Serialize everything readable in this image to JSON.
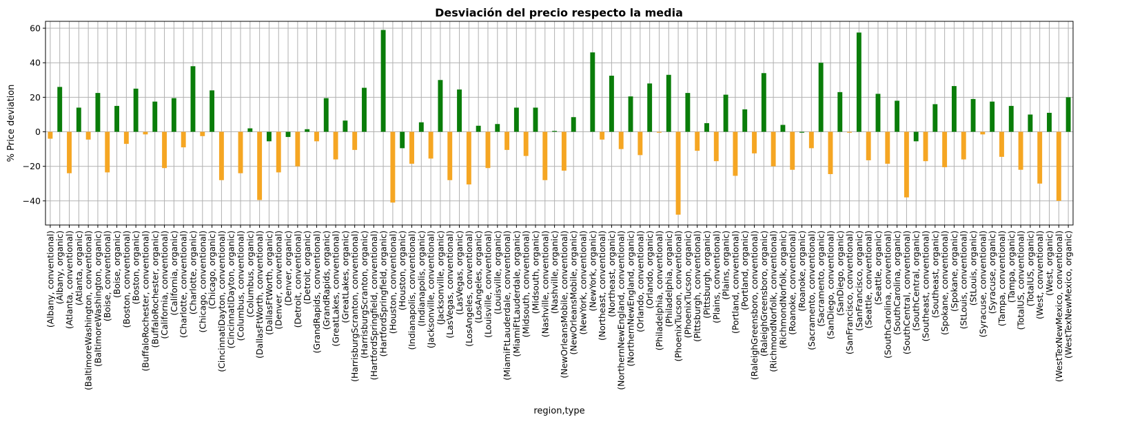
{
  "chart_data": {
    "type": "bar",
    "title": "Desviación del precio respecto la media",
    "xlabel": "region,type",
    "ylabel": "% Price deviation",
    "ylim": [
      -54,
      64
    ],
    "yticks": [
      -40,
      -20,
      0,
      20,
      40,
      60
    ],
    "grid": true,
    "legend": "none",
    "colors": {
      "conventional": "#f5a623",
      "organic": "#0a7d0a",
      "grid": "#b0b0b0",
      "axis": "#000000"
    },
    "categories": [
      "(Albany, conventional)",
      "(Albany, organic)",
      "(Atlanta, conventional)",
      "(Atlanta, organic)",
      "(BaltimoreWashington, conventional)",
      "(BaltimoreWashington, organic)",
      "(Boise, conventional)",
      "(Boise, organic)",
      "(Boston, conventional)",
      "(Boston, organic)",
      "(BuffaloRochester, conventional)",
      "(BuffaloRochester, organic)",
      "(California, conventional)",
      "(California, organic)",
      "(Charlotte, conventional)",
      "(Charlotte, organic)",
      "(Chicago, conventional)",
      "(Chicago, organic)",
      "(CincinnatiDayton, conventional)",
      "(CincinnatiDayton, organic)",
      "(Columbus, conventional)",
      "(Columbus, organic)",
      "(DallasFtWorth, conventional)",
      "(DallasFtWorth, organic)",
      "(Denver, conventional)",
      "(Denver, organic)",
      "(Detroit, conventional)",
      "(Detroit, organic)",
      "(GrandRapids, conventional)",
      "(GrandRapids, organic)",
      "(GreatLakes, conventional)",
      "(GreatLakes, organic)",
      "(HarrisburgScranton, conventional)",
      "(HarrisburgScranton, organic)",
      "(HartfordSpringfield, conventional)",
      "(HartfordSpringfield, organic)",
      "(Houston, conventional)",
      "(Houston, organic)",
      "(Indianapolis, conventional)",
      "(Indianapolis, organic)",
      "(Jacksonville, conventional)",
      "(Jacksonville, organic)",
      "(LasVegas, conventional)",
      "(LasVegas, organic)",
      "(LosAngeles, conventional)",
      "(LosAngeles, organic)",
      "(Louisville, conventional)",
      "(Louisville, organic)",
      "(MiamiFtLauderdale, conventional)",
      "(MiamiFtLauderdale, organic)",
      "(Midsouth, conventional)",
      "(Midsouth, organic)",
      "(Nashville, conventional)",
      "(Nashville, organic)",
      "(NewOrleansMobile, conventional)",
      "(NewOrleansMobile, organic)",
      "(NewYork, conventional)",
      "(NewYork, organic)",
      "(Northeast, conventional)",
      "(Northeast, organic)",
      "(NorthernNewEngland, conventional)",
      "(NorthernNewEngland, organic)",
      "(Orlando, conventional)",
      "(Orlando, organic)",
      "(Philadelphia, conventional)",
      "(Philadelphia, organic)",
      "(PhoenixTucson, conventional)",
      "(PhoenixTucson, organic)",
      "(Pittsburgh, conventional)",
      "(Pittsburgh, organic)",
      "(Plains, conventional)",
      "(Plains, organic)",
      "(Portland, conventional)",
      "(Portland, organic)",
      "(RaleighGreensboro, conventional)",
      "(RaleighGreensboro, organic)",
      "(RichmondNorfolk, conventional)",
      "(RichmondNorfolk, organic)",
      "(Roanoke, conventional)",
      "(Roanoke, organic)",
      "(Sacramento, conventional)",
      "(Sacramento, organic)",
      "(SanDiego, conventional)",
      "(SanDiego, organic)",
      "(SanFrancisco, conventional)",
      "(SanFrancisco, organic)",
      "(Seattle, conventional)",
      "(Seattle, organic)",
      "(SouthCarolina, conventional)",
      "(SouthCarolina, organic)",
      "(SouthCentral, conventional)",
      "(SouthCentral, organic)",
      "(Southeast, conventional)",
      "(Southeast, organic)",
      "(Spokane, conventional)",
      "(Spokane, organic)",
      "(StLouis, conventional)",
      "(StLouis, organic)",
      "(Syracuse, conventional)",
      "(Syracuse, organic)",
      "(Tampa, conventional)",
      "(Tampa, organic)",
      "(TotalUS, conventional)",
      "(TotalUS, organic)",
      "(West, conventional)",
      "(West, organic)",
      "(WestTexNewMexico, conventional)",
      "(WestTexNewMexico, organic)"
    ],
    "values": [
      -4,
      26,
      -24,
      14,
      -4.5,
      22.5,
      -23.5,
      15,
      -7,
      25,
      -1.5,
      17.5,
      -21,
      19.5,
      -9,
      38,
      -2.5,
      24,
      -28,
      0,
      -24,
      2,
      -39.5,
      -5.5,
      -23.5,
      -3,
      -20,
      1.5,
      -5.5,
      19.5,
      -16,
      6.5,
      -10.5,
      25.5,
      0,
      59,
      -41,
      -9.5,
      -18.5,
      5.5,
      -15.5,
      30,
      -28,
      24.5,
      -30.5,
      3.5,
      -21,
      4.5,
      -10.5,
      14,
      -14,
      14,
      -28,
      0.5,
      -22.5,
      8.5,
      0,
      46,
      -4.5,
      32.5,
      -10,
      20.5,
      -13.5,
      28,
      -0.5,
      33,
      -48,
      22.5,
      -11,
      5,
      -17,
      21.5,
      -25.5,
      13,
      -12.5,
      34,
      -20,
      4,
      -22,
      -0.5,
      -9.5,
      40,
      -24.5,
      23,
      -0.5,
      57.5,
      -16.5,
      22,
      -18.5,
      18,
      -38,
      -5.5,
      -17,
      16,
      -20.5,
      26.5,
      -16,
      19,
      -1.5,
      17.5,
      -14.5,
      15,
      -22,
      10,
      -30,
      11,
      -40,
      20
    ]
  }
}
